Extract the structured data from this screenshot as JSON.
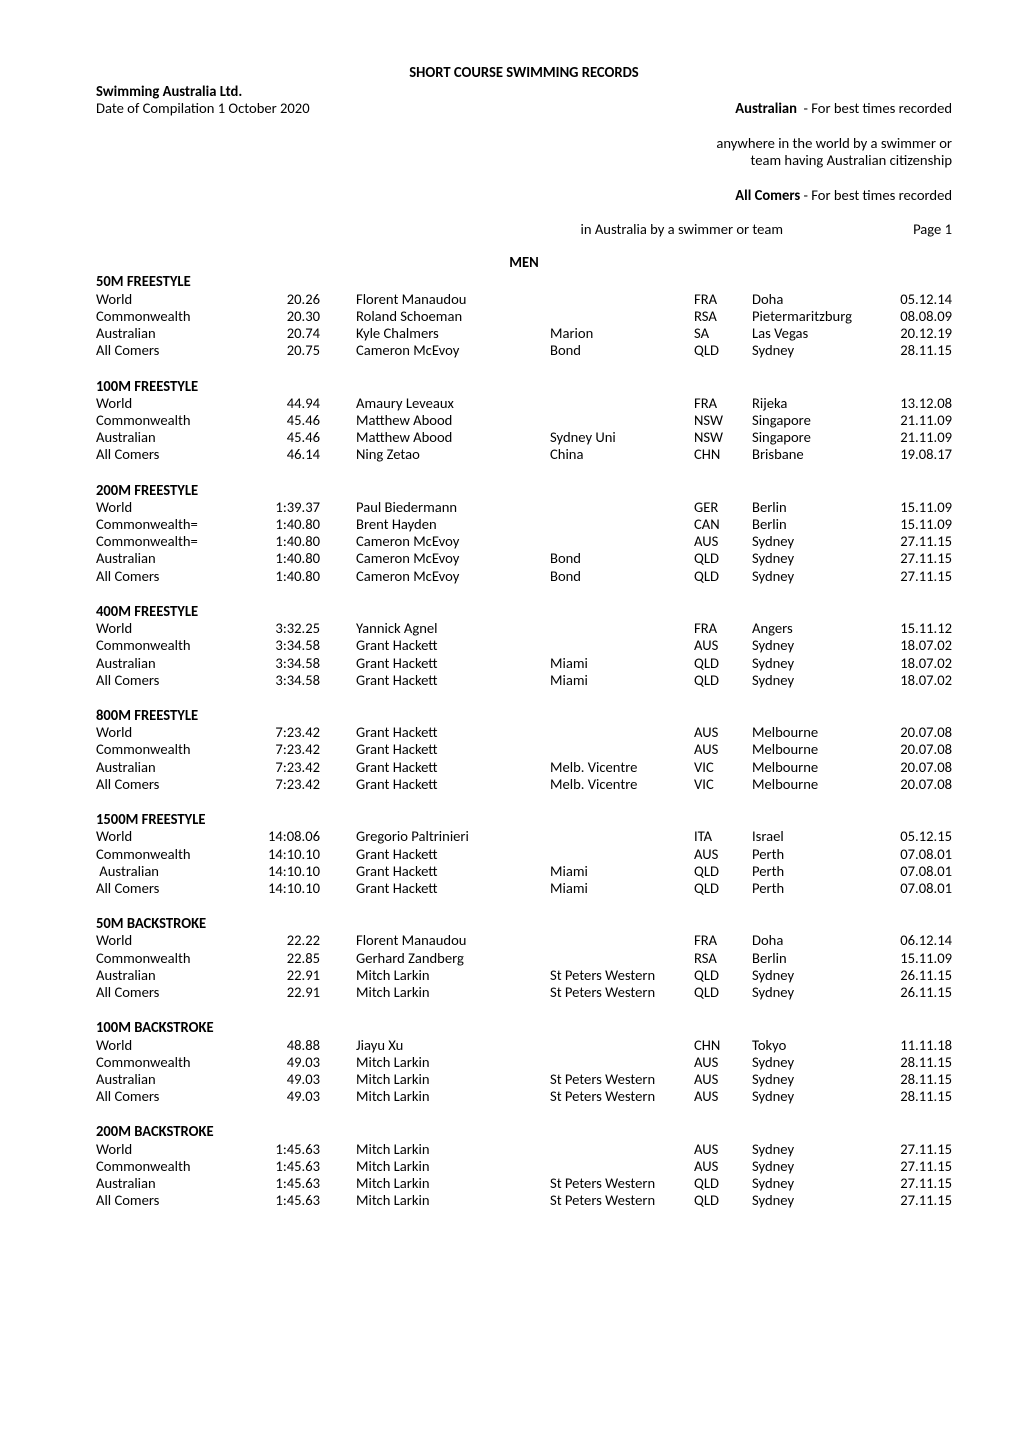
{
  "title": "SHORT COURSE SWIMMING RECORDS",
  "header_left": {
    "line1": "Swimming Australia Ltd.",
    "line2": "Date of Compilation 1 October 2020"
  },
  "header_right": {
    "l1_pre": "Australian",
    "l1_post": "  - For best times recorded",
    "l2": "anywhere in the world by a swimmer or",
    "l3": "team having Australian citizenship",
    "l4_pre": "All Comers",
    "l4_post": " - For best times recorded",
    "l5": "in Australia by a swimmer or team",
    "page_label": "Page 1"
  },
  "section_heading": "MEN",
  "events": [
    {
      "name": "50M FREESTYLE",
      "rows": [
        {
          "cat": "World",
          "time": "20.26",
          "athlete": "Florent Manaudou",
          "team": "",
          "code": "FRA",
          "place": "Doha",
          "date": "05.12.14"
        },
        {
          "cat": "Commonwealth",
          "time": "20.30",
          "athlete": "Roland Schoeman",
          "team": "",
          "code": "RSA",
          "place": "Pietermaritzburg",
          "date": "08.08.09"
        },
        {
          "cat": "Australian",
          "time": "20.74",
          "athlete": "Kyle Chalmers",
          "team": "Marion",
          "code": "SA",
          "place": "Las Vegas",
          "date": "20.12.19"
        },
        {
          "cat": "All Comers",
          "time": "20.75",
          "athlete": "Cameron McEvoy",
          "team": "Bond",
          "code": "QLD",
          "place": "Sydney",
          "date": "28.11.15"
        }
      ]
    },
    {
      "name": "100M FREESTYLE",
      "rows": [
        {
          "cat": "World",
          "time": "44.94",
          "athlete": "Amaury Leveaux",
          "team": "",
          "code": "FRA",
          "place": "Rijeka",
          "date": "13.12.08"
        },
        {
          "cat": "Commonwealth",
          "time": "45.46",
          "athlete": "Matthew Abood",
          "team": "",
          "code": "NSW",
          "place": "Singapore",
          "date": "21.11.09"
        },
        {
          "cat": "Australian",
          "time": "45.46",
          "athlete": "Matthew Abood",
          "team": "Sydney Uni",
          "code": "NSW",
          "place": "Singapore",
          "date": "21.11.09"
        },
        {
          "cat": "All Comers",
          "time": "46.14",
          "athlete": "Ning Zetao",
          "team": "China",
          "code": "CHN",
          "place": "Brisbane",
          "date": "19.08.17"
        }
      ]
    },
    {
      "name": "200M FREESTYLE",
      "rows": [
        {
          "cat": "World",
          "time": "1:39.37",
          "athlete": "Paul Biedermann",
          "team": "",
          "code": "GER",
          "place": "Berlin",
          "date": "15.11.09"
        },
        {
          "cat": "Commonwealth=",
          "time": "1:40.80",
          "athlete": "Brent Hayden",
          "team": "",
          "code": "CAN",
          "place": "Berlin",
          "date": "15.11.09"
        },
        {
          "cat": "Commonwealth=",
          "time": "1:40.80",
          "athlete": "Cameron McEvoy",
          "team": "",
          "code": "AUS",
          "place": "Sydney",
          "date": "27.11.15"
        },
        {
          "cat": "Australian",
          "time": "1:40.80",
          "athlete": "Cameron McEvoy",
          "team": "Bond",
          "code": "QLD",
          "place": "Sydney",
          "date": "27.11.15"
        },
        {
          "cat": "All Comers",
          "time": "1:40.80",
          "athlete": "Cameron McEvoy",
          "team": "Bond",
          "code": "QLD",
          "place": "Sydney",
          "date": "27.11.15"
        }
      ]
    },
    {
      "name": "400M FREESTYLE",
      "rows": [
        {
          "cat": "World",
          "time": "3:32.25",
          "athlete": "Yannick Agnel",
          "team": "",
          "code": "FRA",
          "place": "Angers",
          "date": "15.11.12"
        },
        {
          "cat": "Commonwealth",
          "time": "3:34.58",
          "athlete": "Grant Hackett",
          "team": "",
          "code": "AUS",
          "place": "Sydney",
          "date": "18.07.02"
        },
        {
          "cat": "Australian",
          "time": "3:34.58",
          "athlete": "Grant Hackett",
          "team": "Miami",
          "code": "QLD",
          "place": "Sydney",
          "date": "18.07.02"
        },
        {
          "cat": "All Comers",
          "time": "3:34.58",
          "athlete": "Grant Hackett",
          "team": "Miami",
          "code": "QLD",
          "place": "Sydney",
          "date": "18.07.02"
        }
      ]
    },
    {
      "name": "800M FREESTYLE",
      "rows": [
        {
          "cat": "World",
          "time": "7:23.42",
          "athlete": "Grant Hackett",
          "team": "",
          "code": "AUS",
          "place": "Melbourne",
          "date": "20.07.08"
        },
        {
          "cat": "Commonwealth",
          "time": "7:23.42",
          "athlete": "Grant Hackett",
          "team": "",
          "code": "AUS",
          "place": "Melbourne",
          "date": "20.07.08"
        },
        {
          "cat": "Australian",
          "time": "7:23.42",
          "athlete": "Grant Hackett",
          "team": "Melb. Vicentre",
          "code": "VIC",
          "place": "Melbourne",
          "date": "20.07.08"
        },
        {
          "cat": "All Comers",
          "time": "7:23.42",
          "athlete": "Grant Hackett",
          "team": "Melb. Vicentre",
          "code": "VIC",
          "place": "Melbourne",
          "date": "20.07.08"
        }
      ]
    },
    {
      "name": "1500M FREESTYLE",
      "rows": [
        {
          "cat": "World",
          "time": "14:08.06",
          "athlete": "Gregorio Paltrinieri",
          "team": "",
          "code": "ITA",
          "place": "Israel",
          "date": "05.12.15"
        },
        {
          "cat": "Commonwealth",
          "time": "14:10.10",
          "athlete": "Grant Hackett",
          "team": "",
          "code": "AUS",
          "place": "Perth",
          "date": "07.08.01"
        },
        {
          "cat": " Australian",
          "time": "14:10.10",
          "athlete": "Grant Hackett",
          "team": "Miami",
          "code": "QLD",
          "place": "Perth",
          "date": "07.08.01"
        },
        {
          "cat": "All Comers",
          "time": "14:10.10",
          "athlete": "Grant Hackett",
          "team": "Miami",
          "code": "QLD",
          "place": "Perth",
          "date": "07.08.01"
        }
      ]
    },
    {
      "name": "50M BACKSTROKE",
      "rows": [
        {
          "cat": "World",
          "time": "22.22",
          "athlete": "Florent Manaudou",
          "team": "",
          "code": "FRA",
          "place": "Doha",
          "date": "06.12.14"
        },
        {
          "cat": "Commonwealth",
          "time": "22.85",
          "athlete": "Gerhard Zandberg",
          "team": "",
          "code": "RSA",
          "place": "Berlin",
          "date": "15.11.09"
        },
        {
          "cat": "Australian",
          "time": "22.91",
          "athlete": "Mitch Larkin",
          "team": "St Peters Western",
          "code": "QLD",
          "place": "Sydney",
          "date": "26.11.15"
        },
        {
          "cat": "All Comers",
          "time": "22.91",
          "athlete": "Mitch Larkin",
          "team": "St Peters Western",
          "code": "QLD",
          "place": "Sydney",
          "date": "26.11.15"
        }
      ]
    },
    {
      "name": "100M BACKSTROKE",
      "rows": [
        {
          "cat": "World",
          "time": "48.88",
          "athlete": "Jiayu Xu",
          "team": "",
          "code": "CHN",
          "place": "Tokyo",
          "date": "11.11.18"
        },
        {
          "cat": "Commonwealth",
          "time": "49.03",
          "athlete": "Mitch Larkin",
          "team": "",
          "code": "AUS",
          "place": "Sydney",
          "date": "28.11.15"
        },
        {
          "cat": "Australian",
          "time": "49.03",
          "athlete": "Mitch Larkin",
          "team": "St Peters Western",
          "code": "AUS",
          "place": "Sydney",
          "date": "28.11.15"
        },
        {
          "cat": "All Comers",
          "time": "49.03",
          "athlete": "Mitch Larkin",
          "team": "St Peters Western",
          "code": "AUS",
          "place": "Sydney",
          "date": "28.11.15"
        }
      ]
    },
    {
      "name": "200M BACKSTROKE",
      "rows": [
        {
          "cat": "World",
          "time": "1:45.63",
          "athlete": "Mitch Larkin",
          "team": "",
          "code": "AUS",
          "place": "Sydney",
          "date": "27.11.15"
        },
        {
          "cat": "Commonwealth",
          "time": "1:45.63",
          "athlete": "Mitch Larkin",
          "team": "",
          "code": "AUS",
          "place": "Sydney",
          "date": "27.11.15"
        },
        {
          "cat": "Australian",
          "time": "1:45.63",
          "athlete": "Mitch Larkin",
          "team": "St Peters Western",
          "code": "QLD",
          "place": "Sydney",
          "date": "27.11.15"
        },
        {
          "cat": "All Comers",
          "time": "1:45.63",
          "athlete": "Mitch Larkin",
          "team": "St Peters Western",
          "code": "QLD",
          "place": "Sydney",
          "date": "27.11.15"
        }
      ]
    }
  ]
}
